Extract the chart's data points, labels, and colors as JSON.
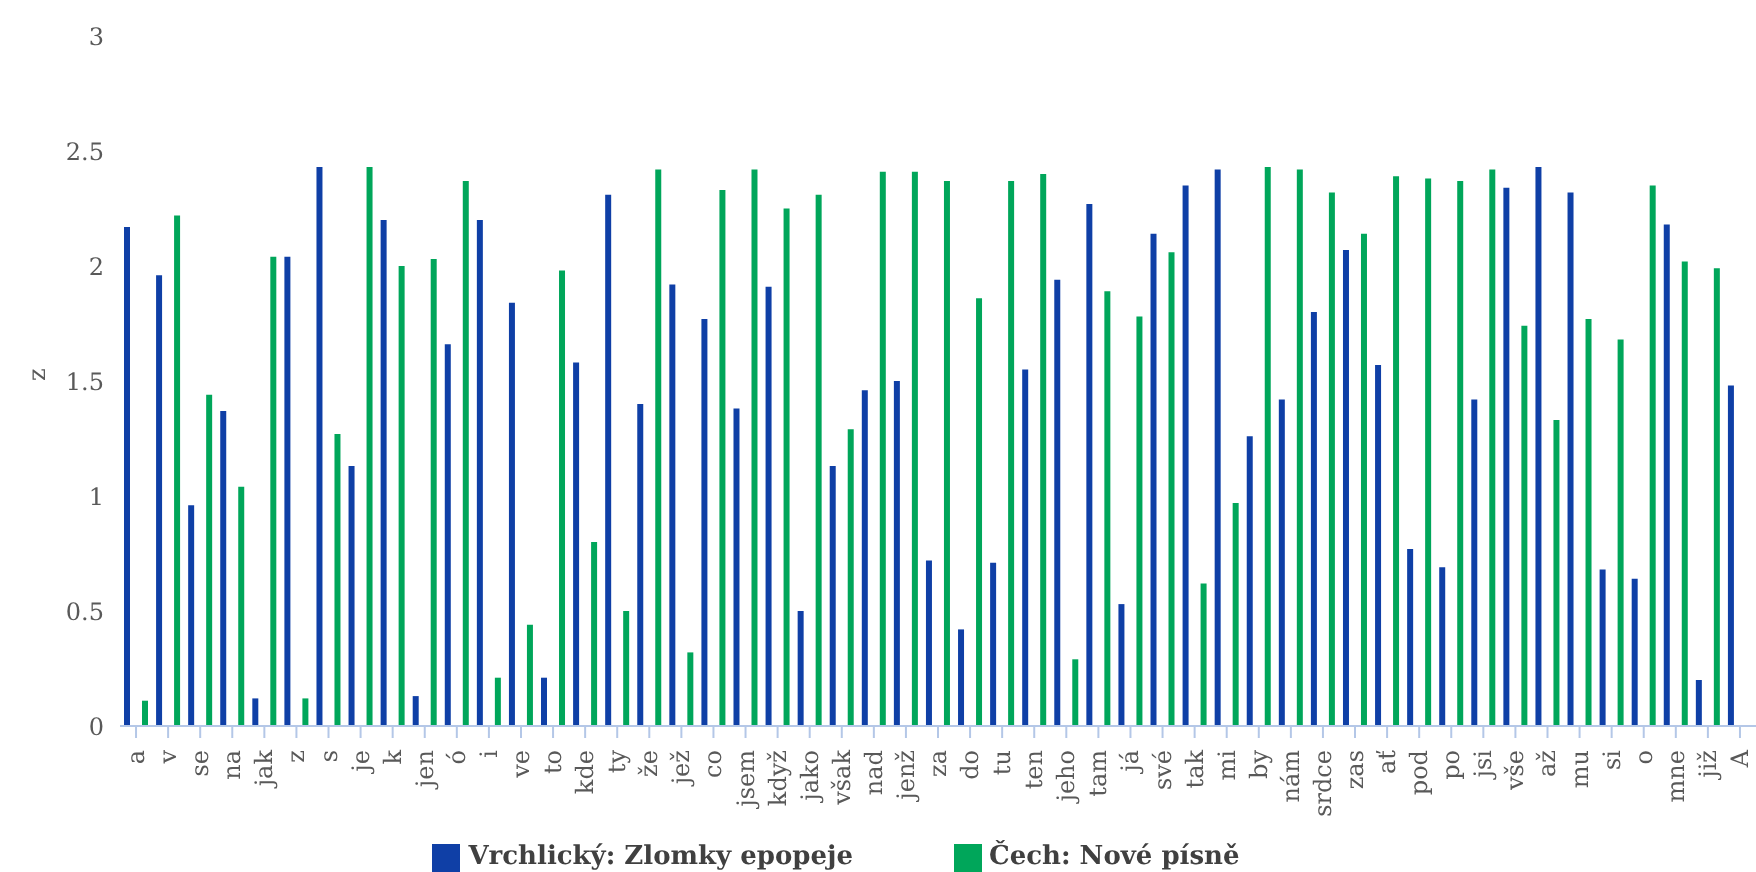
{
  "chart_data": {
    "type": "bar",
    "ylabel": "z",
    "categories": [
      "a",
      "v",
      "se",
      "na",
      "jak",
      "z",
      "s",
      "je",
      "k",
      "jen",
      "ó",
      "i",
      "ve",
      "to",
      "kde",
      "ty",
      "že",
      "jež",
      "co",
      "jsem",
      "když",
      "jako",
      "však",
      "nad",
      "jenž",
      "za",
      "do",
      "tu",
      "ten",
      "jeho",
      "tam",
      "já",
      "své",
      "tak",
      "mi",
      "by",
      "nám",
      "srdce",
      "zas",
      "ať",
      "pod",
      "po",
      "jsi",
      "vše",
      "až",
      "mu",
      "si",
      "o",
      "mne",
      "již",
      "A"
    ],
    "series": [
      {
        "name": "Vrchlický: Zlomky epopeje",
        "color": "#0f3fa6",
        "values": [
          2.17,
          1.96,
          0.96,
          1.37,
          0.12,
          2.04,
          2.43,
          1.13,
          2.2,
          0.13,
          1.66,
          2.2,
          1.84,
          0.21,
          1.58,
          2.31,
          1.4,
          1.92,
          1.77,
          1.38,
          1.91,
          0.5,
          1.13,
          1.46,
          1.5,
          0.72,
          0.42,
          0.71,
          1.55,
          1.94,
          2.27,
          0.53,
          2.14,
          2.35,
          2.42,
          1.26,
          1.42,
          1.8,
          2.07,
          1.57,
          0.77,
          0.69,
          1.42,
          2.34,
          2.43,
          2.32,
          0.68,
          0.64,
          2.18,
          0.2,
          1.48
        ]
      },
      {
        "name": "Čech: Nové písně",
        "color": "#00a65a",
        "values": [
          0.11,
          2.22,
          1.44,
          1.04,
          2.04,
          0.12,
          1.27,
          2.43,
          2.0,
          2.03,
          2.37,
          0.21,
          0.44,
          1.98,
          0.8,
          0.5,
          2.42,
          0.32,
          2.33,
          2.42,
          2.25,
          2.31,
          1.29,
          2.41,
          2.41,
          2.37,
          1.86,
          2.37,
          2.4,
          0.29,
          1.89,
          1.78,
          2.06,
          0.62,
          0.97,
          2.43,
          2.42,
          2.32,
          2.14,
          2.39,
          2.38,
          2.37,
          2.42,
          1.74,
          1.33,
          1.77,
          1.68,
          2.35,
          2.02,
          1.99,
          null
        ]
      }
    ],
    "ylim": [
      0,
      3
    ],
    "yticks": [
      0,
      0.5,
      1,
      1.5,
      2,
      2.5,
      3
    ],
    "grid": false,
    "legend": "bottom"
  }
}
